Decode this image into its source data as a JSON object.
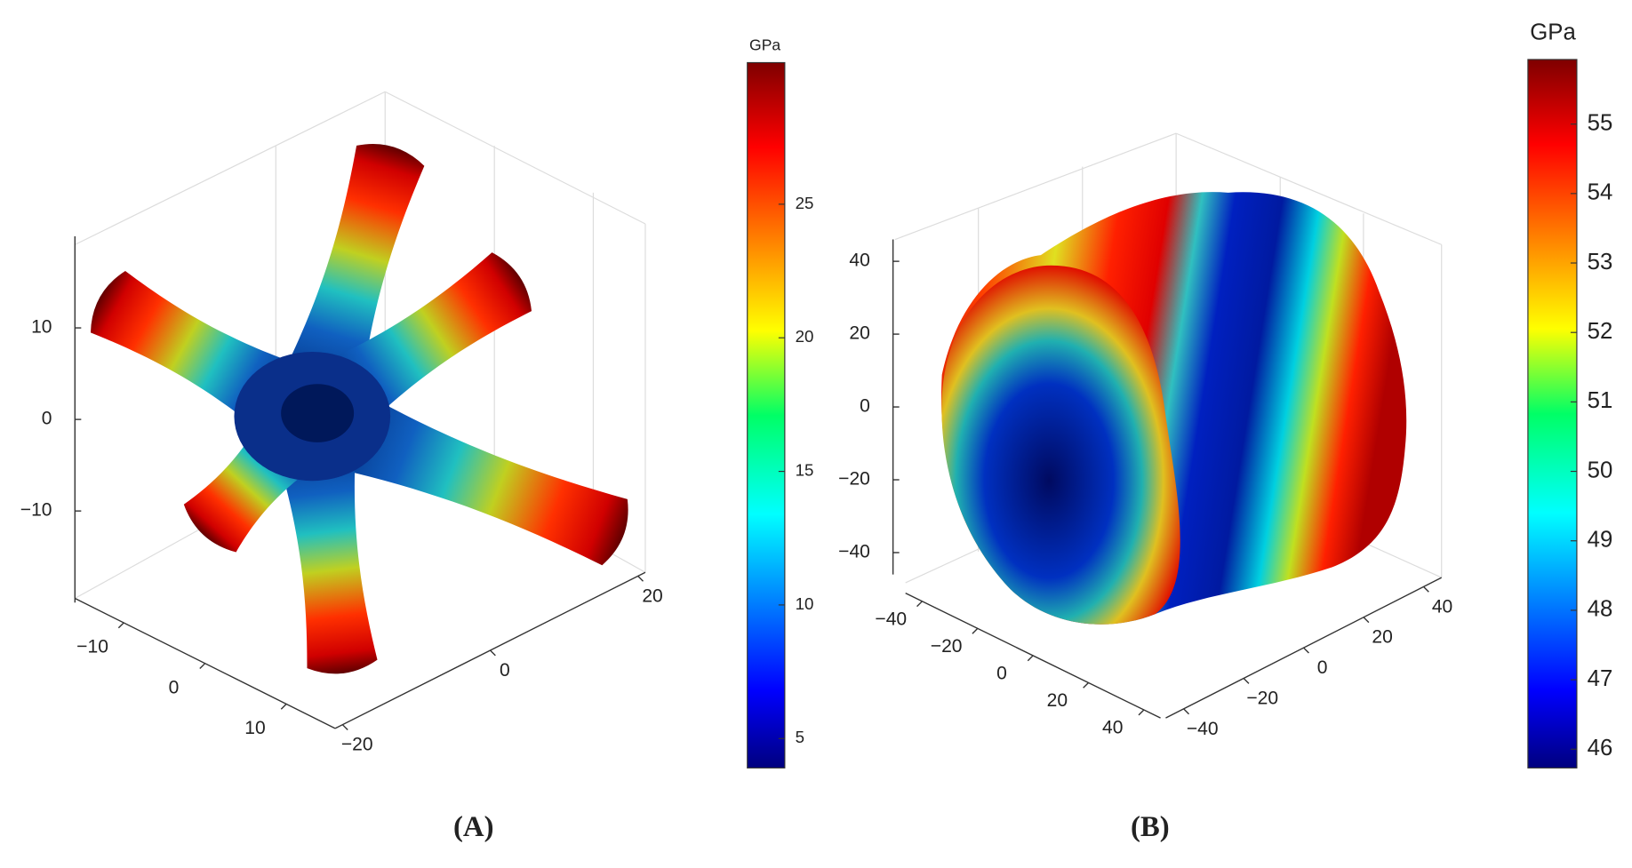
{
  "chart_data": [
    {
      "type": "surface3d",
      "panel_label": "(A)",
      "colorbar_label": "GPa",
      "colormap": "jet",
      "clim": [
        3.9,
        30.3
      ],
      "cticks": [
        5,
        10,
        15,
        20,
        25
      ],
      "zlim": [
        -20,
        20
      ],
      "zticks": [
        {
          "value": -10,
          "label": "−10"
        },
        0,
        10
      ],
      "xlim": [
        -16,
        16
      ],
      "xticks": [
        {
          "value": -10,
          "label": "−10"
        },
        0,
        10
      ],
      "ylim": [
        -21,
        21
      ],
      "yticks": [
        {
          "value": -20,
          "label": "−20"
        },
        0,
        20
      ]
    },
    {
      "type": "surface3d",
      "panel_label": "(B)",
      "colorbar_label": "GPa",
      "colormap": "jet",
      "clim": [
        45.73,
        55.93
      ],
      "cticks": [
        46,
        47,
        48,
        49,
        50,
        51,
        52,
        53,
        54,
        55
      ],
      "zlim": [
        -46,
        46
      ],
      "zticks": [
        {
          "value": -40,
          "label": "−40"
        },
        {
          "value": -20,
          "label": "−20"
        },
        0,
        20,
        40
      ],
      "xlim": [
        -46,
        46
      ],
      "xticks": [
        {
          "value": -40,
          "label": "−40"
        },
        {
          "value": -20,
          "label": "−20"
        },
        0,
        20,
        40
      ],
      "ylim": [
        -46,
        46
      ],
      "yticks": [
        {
          "value": -40,
          "label": "−40"
        },
        {
          "value": -20,
          "label": "−20"
        },
        0,
        20,
        40
      ]
    }
  ]
}
